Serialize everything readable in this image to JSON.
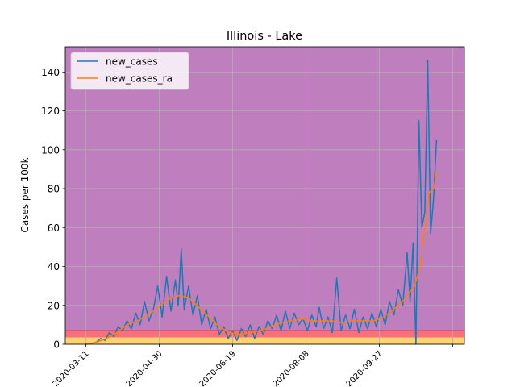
{
  "chart_data": {
    "type": "line",
    "title": "Illinois - Lake",
    "xlabel": "",
    "ylabel": "Cases per 100k",
    "grid": true,
    "legend_position": "top-left",
    "xlim": [
      "2020-02-26",
      "2020-11-24"
    ],
    "ylim": [
      0,
      153
    ],
    "x_ticks": [
      "2020-03-11",
      "2020-04-30",
      "2020-06-19",
      "2020-08-08",
      "2020-09-27",
      "2020-11-16"
    ],
    "x_tick_labels": [
      "2020-03-11",
      "2020-04-30",
      "2020-06-19",
      "2020-08-08",
      "2020-09-27",
      ""
    ],
    "y_ticks": [
      0,
      20,
      40,
      60,
      80,
      100,
      120,
      140
    ],
    "background_bands": [
      {
        "from": 0,
        "to": 3.5,
        "color": "#fcd46b"
      },
      {
        "from": 3.5,
        "to": 7,
        "color": "#f7707b"
      },
      {
        "from": 7,
        "to": 153,
        "color": "#bf7fbf"
      }
    ],
    "threshold_line": {
      "y": 7,
      "color": "#e8404e"
    },
    "series": [
      {
        "name": "new_cases",
        "color": "#1f77b4",
        "points": [
          [
            "2020-03-11",
            0
          ],
          [
            "2020-03-15",
            0.5
          ],
          [
            "2020-03-18",
            1
          ],
          [
            "2020-03-21",
            3
          ],
          [
            "2020-03-24",
            2
          ],
          [
            "2020-03-27",
            6
          ],
          [
            "2020-03-30",
            4
          ],
          [
            "2020-04-02",
            9
          ],
          [
            "2020-04-05",
            7
          ],
          [
            "2020-04-08",
            12
          ],
          [
            "2020-04-11",
            8
          ],
          [
            "2020-04-14",
            16
          ],
          [
            "2020-04-17",
            10
          ],
          [
            "2020-04-20",
            22
          ],
          [
            "2020-04-23",
            12
          ],
          [
            "2020-04-26",
            18
          ],
          [
            "2020-04-29",
            30
          ],
          [
            "2020-05-02",
            14
          ],
          [
            "2020-05-05",
            35
          ],
          [
            "2020-05-08",
            17
          ],
          [
            "2020-05-11",
            33
          ],
          [
            "2020-05-13",
            20
          ],
          [
            "2020-05-15",
            49
          ],
          [
            "2020-05-17",
            18
          ],
          [
            "2020-05-20",
            30
          ],
          [
            "2020-05-23",
            15
          ],
          [
            "2020-05-26",
            25
          ],
          [
            "2020-05-29",
            10
          ],
          [
            "2020-06-01",
            18
          ],
          [
            "2020-06-04",
            8
          ],
          [
            "2020-06-07",
            14
          ],
          [
            "2020-06-10",
            5
          ],
          [
            "2020-06-13",
            9
          ],
          [
            "2020-06-16",
            3
          ],
          [
            "2020-06-19",
            7
          ],
          [
            "2020-06-22",
            2
          ],
          [
            "2020-06-25",
            8
          ],
          [
            "2020-06-28",
            4
          ],
          [
            "2020-07-01",
            10
          ],
          [
            "2020-07-04",
            3
          ],
          [
            "2020-07-07",
            9
          ],
          [
            "2020-07-10",
            5
          ],
          [
            "2020-07-13",
            12
          ],
          [
            "2020-07-16",
            8
          ],
          [
            "2020-07-19",
            15
          ],
          [
            "2020-07-22",
            7
          ],
          [
            "2020-07-25",
            17
          ],
          [
            "2020-07-28",
            8
          ],
          [
            "2020-07-31",
            16
          ],
          [
            "2020-08-03",
            10
          ],
          [
            "2020-08-06",
            13
          ],
          [
            "2020-08-09",
            7
          ],
          [
            "2020-08-12",
            15
          ],
          [
            "2020-08-15",
            9
          ],
          [
            "2020-08-17",
            19
          ],
          [
            "2020-08-20",
            8
          ],
          [
            "2020-08-23",
            14
          ],
          [
            "2020-08-26",
            6
          ],
          [
            "2020-08-29",
            34
          ],
          [
            "2020-09-01",
            7
          ],
          [
            "2020-09-04",
            15
          ],
          [
            "2020-09-07",
            8
          ],
          [
            "2020-09-10",
            18
          ],
          [
            "2020-09-13",
            6
          ],
          [
            "2020-09-16",
            14
          ],
          [
            "2020-09-19",
            8
          ],
          [
            "2020-09-22",
            16
          ],
          [
            "2020-09-25",
            9
          ],
          [
            "2020-09-28",
            18
          ],
          [
            "2020-10-01",
            10
          ],
          [
            "2020-10-04",
            22
          ],
          [
            "2020-10-07",
            15
          ],
          [
            "2020-10-10",
            28
          ],
          [
            "2020-10-13",
            20
          ],
          [
            "2020-10-16",
            47
          ],
          [
            "2020-10-18",
            22
          ],
          [
            "2020-10-20",
            52
          ],
          [
            "2020-10-22",
            0
          ],
          [
            "2020-10-24",
            115
          ],
          [
            "2020-10-26",
            60
          ],
          [
            "2020-10-28",
            68
          ],
          [
            "2020-10-30",
            146
          ],
          [
            "2020-11-01",
            57
          ],
          [
            "2020-11-03",
            75
          ],
          [
            "2020-11-05",
            105
          ]
        ]
      },
      {
        "name": "new_cases_ra",
        "color": "#ff7f0e",
        "points": [
          [
            "2020-03-11",
            0
          ],
          [
            "2020-03-18",
            1
          ],
          [
            "2020-03-25",
            3
          ],
          [
            "2020-04-01",
            6
          ],
          [
            "2020-04-08",
            10
          ],
          [
            "2020-04-15",
            12
          ],
          [
            "2020-04-22",
            15
          ],
          [
            "2020-04-29",
            19
          ],
          [
            "2020-05-06",
            23
          ],
          [
            "2020-05-13",
            25
          ],
          [
            "2020-05-20",
            24
          ],
          [
            "2020-05-27",
            19
          ],
          [
            "2020-06-03",
            14
          ],
          [
            "2020-06-10",
            9
          ],
          [
            "2020-06-17",
            6
          ],
          [
            "2020-06-24",
            5
          ],
          [
            "2020-07-01",
            6
          ],
          [
            "2020-07-08",
            7
          ],
          [
            "2020-07-15",
            9
          ],
          [
            "2020-07-22",
            11
          ],
          [
            "2020-07-29",
            12
          ],
          [
            "2020-08-05",
            13
          ],
          [
            "2020-08-12",
            12
          ],
          [
            "2020-08-19",
            12
          ],
          [
            "2020-08-26",
            12
          ],
          [
            "2020-09-02",
            11
          ],
          [
            "2020-09-09",
            12
          ],
          [
            "2020-09-16",
            12
          ],
          [
            "2020-09-23",
            12
          ],
          [
            "2020-09-30",
            14
          ],
          [
            "2020-10-07",
            18
          ],
          [
            "2020-10-14",
            23
          ],
          [
            "2020-10-21",
            30
          ],
          [
            "2020-10-25",
            40
          ],
          [
            "2020-10-28",
            60
          ],
          [
            "2020-10-31",
            78
          ],
          [
            "2020-11-03",
            80
          ],
          [
            "2020-11-05",
            88
          ]
        ]
      }
    ]
  }
}
